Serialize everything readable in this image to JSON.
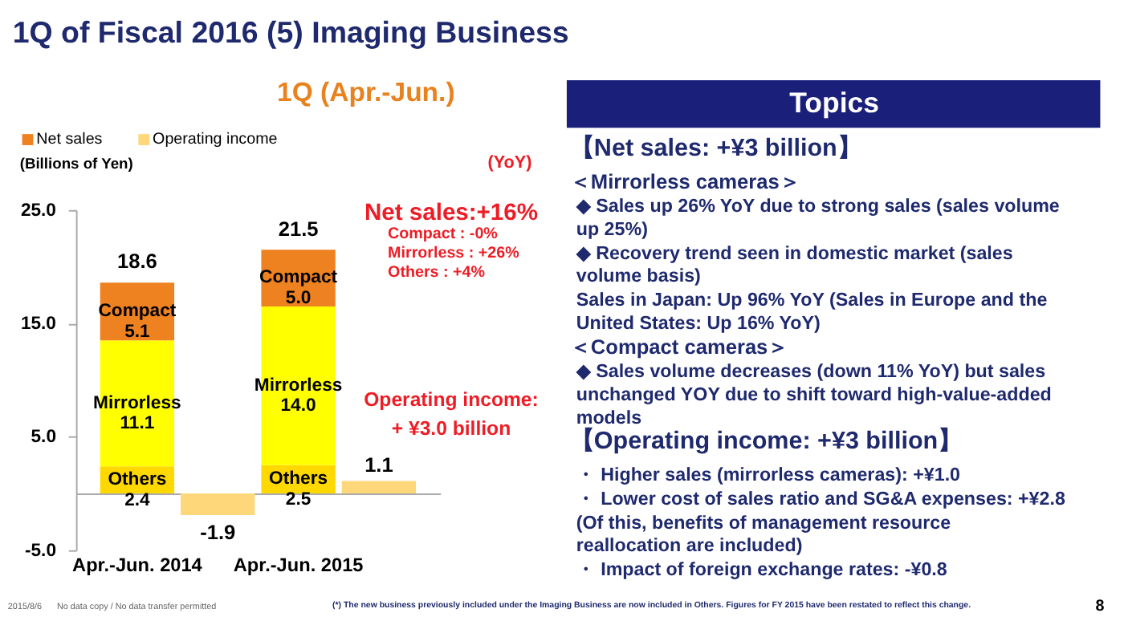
{
  "chart_data": [
    {
      "type": "bar",
      "title": "1Q of Fiscal 2016 (5) Imaging Business",
      "subtitle": "1Q (Apr.-Jun.)",
      "ylabel": "(Billions of Yen)",
      "categories": [
        "Apr.-Jun. 2014",
        null,
        "Apr.-Jun. 2015",
        null
      ],
      "stacked": true,
      "series": [
        {
          "name": "Others",
          "color": "#ffd800",
          "values": [
            2.4,
            null,
            2.5,
            null
          ],
          "value_labels": [
            "2.4",
            null,
            "2.5",
            null
          ]
        },
        {
          "name": "Mirrorless",
          "color": "#ffff00",
          "values": [
            11.1,
            null,
            14.0,
            null
          ],
          "value_labels": [
            "11.1",
            null,
            "14.0",
            null
          ]
        },
        {
          "name": "Compact",
          "color": "#ee8120",
          "values": [
            5.1,
            null,
            5.0,
            null
          ],
          "value_labels": [
            "5.1",
            null,
            "5.0",
            null
          ]
        },
        {
          "name": "Operating income",
          "color": "#fdd77a",
          "values": [
            null,
            -1.9,
            null,
            1.1
          ],
          "value_labels": [
            null,
            "-1.9",
            null,
            "1.1"
          ]
        }
      ],
      "totals": [
        "18.6",
        null,
        "21.5",
        null
      ],
      "ylim": [
        -5,
        25
      ],
      "yticks": [
        {
          "value": -5,
          "label": "-5.0"
        },
        {
          "value": 5,
          "label": "5.0"
        },
        {
          "value": 15,
          "label": "15.0"
        },
        {
          "value": 25,
          "label": "25.0"
        }
      ],
      "legend": "top left",
      "annotations": [
        "Net sales",
        "(YoY)",
        "Net sales:+16%",
        "Compact : -0%",
        "Mirrorless : +26%",
        "Others : +4%",
        "Operating income:",
        "+ ¥3.0 billion",
        "2015/8/6",
        "No data copy / No data transfer permitted",
        "(*) The new business previously included under the Imaging Business are now included in Others. Figures for FY 2015 have been restated to reflect this change.",
        "8"
      ]
    },
    {
      "type": "other",
      "title": "Topics",
      "annotations": [
        "【Net sales: +¥3 billion】",
        "＜Mirrorless cameras＞",
        "◆ Sales up 26% YoY due to strong sales (sales volume up 25%)",
        "◆ Recovery trend seen in domestic market (sales volume basis)",
        "Sales in Japan: Up 96% YoY (Sales in Europe and the United States: Up 16% YoY)",
        "＜Compact cameras＞",
        "◆ Sales volume decreases (down 11% YoY) but sales unchanged YOY due to shift toward high-value-added models",
        "【Operating income: +¥3 billion】",
        "・ Higher sales (mirrorless cameras): +¥1.0",
        "・ Lower cost of sales ratio and SG&A expenses: +¥2.8",
        "(Of this, benefits of management resource reallocation are included)",
        "・ Impact of foreign exchange rates: -¥0.8"
      ]
    }
  ]
}
